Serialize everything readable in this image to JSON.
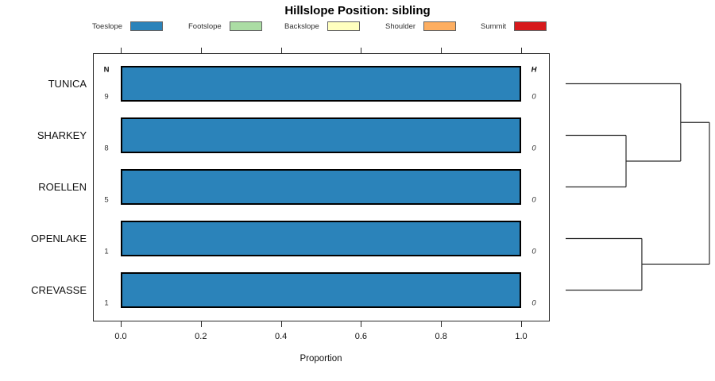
{
  "title": "Hillslope Position: sibling",
  "legend": {
    "items": [
      {
        "label": "Toeslope",
        "color": "#2B83BA"
      },
      {
        "label": "Footslope",
        "color": "#ABDDA4"
      },
      {
        "label": "Backslope",
        "color": "#FFFFBF"
      },
      {
        "label": "Shoulder",
        "color": "#FDAE61"
      },
      {
        "label": "Summit",
        "color": "#D7191C"
      }
    ]
  },
  "chart_data": {
    "type": "bar",
    "orientation": "horizontal",
    "title": "Hillslope Position: sibling",
    "xlabel": "Proportion",
    "xlim": [
      0.0,
      1.0
    ],
    "x_ticks": [
      "0.0",
      "0.2",
      "0.4",
      "0.6",
      "0.8",
      "1.0"
    ],
    "x_tick_values": [
      0.0,
      0.2,
      0.4,
      0.6,
      0.8,
      1.0
    ],
    "grid": false,
    "legend_position": "top",
    "categories": [
      "TUNICA",
      "SHARKEY",
      "ROELLEN",
      "OPENLAKE",
      "CREVASSE"
    ],
    "series": [
      {
        "name": "Toeslope",
        "color": "#2B83BA",
        "values": [
          1.0,
          1.0,
          1.0,
          1.0,
          1.0
        ]
      },
      {
        "name": "Footslope",
        "color": "#ABDDA4",
        "values": [
          0,
          0,
          0,
          0,
          0
        ]
      },
      {
        "name": "Backslope",
        "color": "#FFFFBF",
        "values": [
          0,
          0,
          0,
          0,
          0
        ]
      },
      {
        "name": "Shoulder",
        "color": "#FDAE61",
        "values": [
          0,
          0,
          0,
          0,
          0
        ]
      },
      {
        "name": "Summit",
        "color": "#D7191C",
        "values": [
          0,
          0,
          0,
          0,
          0
        ]
      }
    ],
    "annotations": {
      "n_header": "N",
      "n_values": [
        "9",
        "8",
        "5",
        "1",
        "1"
      ],
      "h_header": "H",
      "h_values": [
        "0",
        "0",
        "0",
        "0",
        "0"
      ]
    }
  },
  "dendrogram": {
    "leaves": [
      "TUNICA",
      "SHARKEY",
      "ROELLEN",
      "OPENLAKE",
      "CREVASSE"
    ],
    "merges": [
      {
        "a": "SHARKEY",
        "b": "ROELLEN",
        "height": 0.42
      },
      {
        "a": "OPENLAKE",
        "b": "CREVASSE",
        "height": 0.53
      },
      {
        "a": "TUNICA",
        "b": "SHARKEY|ROELLEN",
        "height": 0.8
      },
      {
        "a": "TUNICA|SHARKEY|ROELLEN",
        "b": "OPENLAKE|CREVASSE",
        "height": 1.0
      }
    ]
  }
}
